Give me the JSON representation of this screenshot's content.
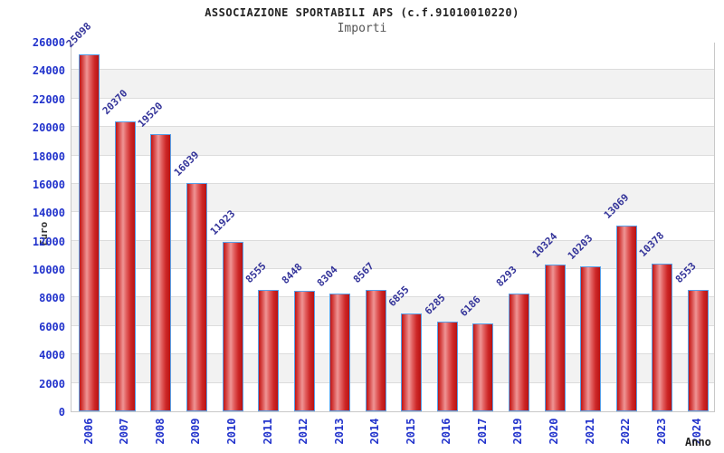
{
  "chart_data": {
    "type": "bar",
    "title": "ASSOCIAZIONE SPORTABILI APS (c.f.91010010220)",
    "subtitle": "Importi",
    "xlabel": "Anno",
    "ylabel": "Euro",
    "ylim": [
      0,
      26000
    ],
    "ytick_step": 2000,
    "grid": "horizontal gridlines with alternating white/grey bands",
    "legend": "none",
    "categories": [
      "2006",
      "2007",
      "2008",
      "2009",
      "2010",
      "2011",
      "2012",
      "2013",
      "2014",
      "2015",
      "2016",
      "2017",
      "2019",
      "2020",
      "2021",
      "2022",
      "2023",
      "2024"
    ],
    "values": [
      25098,
      20370,
      19520,
      16039,
      11923,
      8555,
      8448,
      8304,
      8567,
      6855,
      6285,
      6186,
      8293,
      10324,
      10203,
      13069,
      10378,
      8553
    ],
    "colors": {
      "bar_fill_dark": "#bf1515",
      "bar_fill_light": "#ef9595",
      "bar_border": "#58a0e8",
      "tick_label": "#2233cc",
      "value_label": "#333399",
      "axis_title": "#333333",
      "stripe_grey": "#f2f2f2",
      "gridline": "#dcdcdc",
      "plot_border": "#c8c8c8",
      "title_color": "#222222",
      "subtitle_color": "#555555"
    }
  }
}
